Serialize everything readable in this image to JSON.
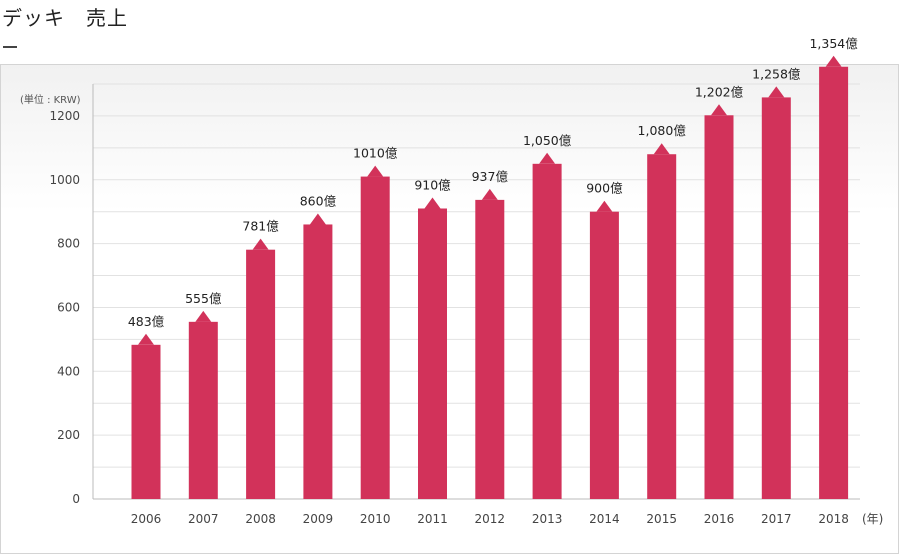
{
  "page": {
    "title": "デッキ　売上"
  },
  "colors": {
    "bar": "#d2325a",
    "grid": "#e2e2e2",
    "axis": "#bbbbbb"
  },
  "chart_data": {
    "type": "bar",
    "unit_label": "(単位 : KRW)",
    "x_unit": "(年)",
    "categories": [
      "2006",
      "2007",
      "2008",
      "2009",
      "2010",
      "2011",
      "2012",
      "2013",
      "2014",
      "2015",
      "2016",
      "2017",
      "2018"
    ],
    "values": [
      483,
      555,
      781,
      860,
      1010,
      910,
      937,
      1050,
      900,
      1080,
      1202,
      1258,
      1354
    ],
    "data_labels": [
      "483億",
      "555億",
      "781億",
      "860億",
      "1010億",
      "910億",
      "937億",
      "1,050億",
      "900億",
      "1,080億",
      "1,202億",
      "1,258億",
      "1,354億"
    ],
    "yticks": [
      "0",
      "200",
      "400",
      "600",
      "800",
      "1000",
      "1200"
    ],
    "ylim": [
      0,
      1300
    ],
    "grid": true
  }
}
